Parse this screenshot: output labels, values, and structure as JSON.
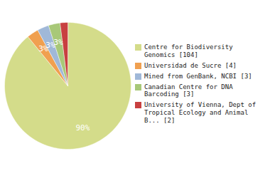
{
  "chart_data": {
    "type": "pie",
    "categories": [
      "Centre for Biodiversity\nGenomics [104]",
      "Universidad de Sucre [4]",
      "Mined from GenBank, NCBI [3]",
      "Canadian Centre for DNA\nBarcoding [3]",
      "University of Vienna, Dept of\nTropical Ecology and Animal\nB... [2]"
    ],
    "values": [
      90,
      3,
      3,
      3,
      2
    ],
    "value_labels": [
      "90%",
      "3%",
      "3%",
      "3%",
      null
    ],
    "colors": [
      "#d4dc8a",
      "#f0a050",
      "#a0b8d8",
      "#a8c878",
      "#c84040"
    ],
    "data_labels": true,
    "legend": "right"
  }
}
